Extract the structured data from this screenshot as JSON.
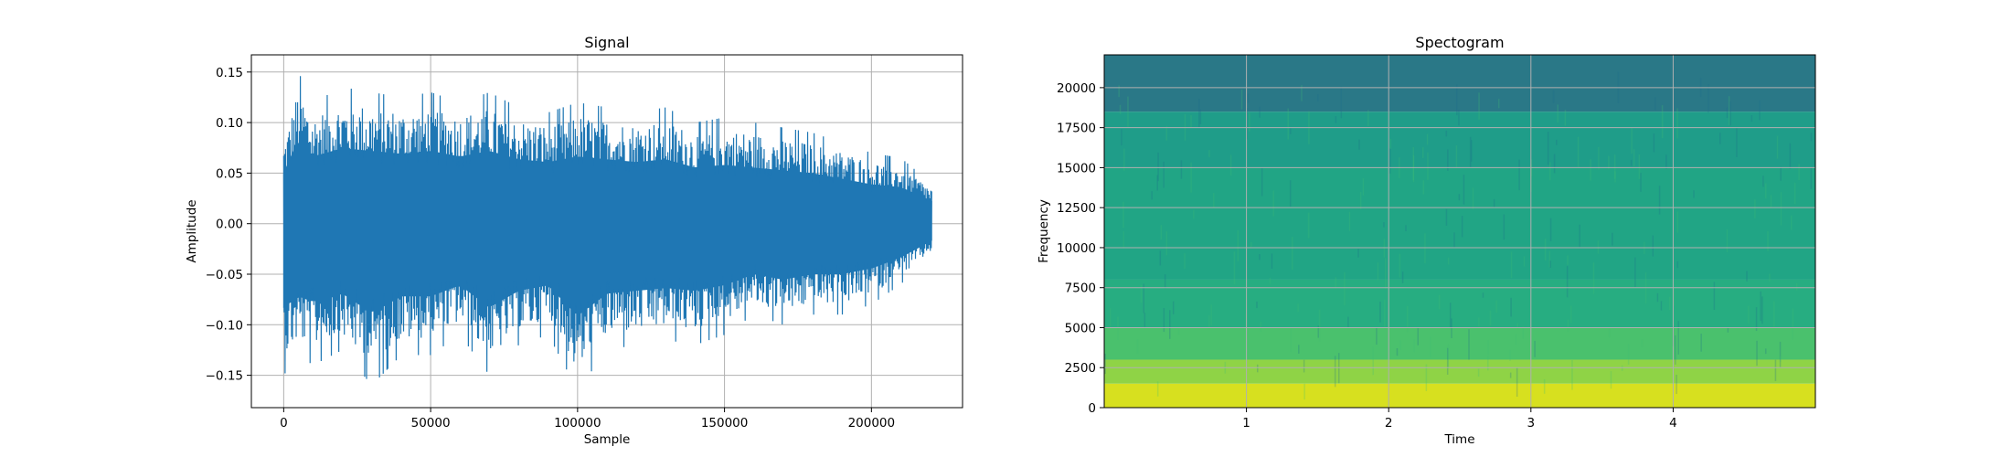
{
  "chart_data": [
    {
      "type": "line",
      "title": "Signal",
      "xlabel": "Sample",
      "ylabel": "Amplitude",
      "xlim": [
        -11000,
        231000
      ],
      "ylim": [
        -0.182,
        0.167
      ],
      "x_ticks": [
        0,
        50000,
        100000,
        150000,
        200000
      ],
      "x_tick_labels": [
        "0",
        "50000",
        "100000",
        "150000",
        "200000"
      ],
      "y_ticks": [
        -0.15,
        -0.1,
        -0.05,
        0.0,
        0.05,
        0.1,
        0.15
      ],
      "y_tick_labels": [
        "−0.15",
        "−0.10",
        "−0.05",
        "0.00",
        "0.05",
        "0.10",
        "0.15"
      ],
      "grid": true,
      "series": [
        {
          "color": "#1f77b4",
          "x_range": [
            0,
            220500
          ],
          "envelope": {
            "x": [
              0,
              5000,
              10000,
              20000,
              30000,
              40000,
              50000,
              60000,
              70000,
              80000,
              90000,
              100000,
              110000,
              120000,
              130000,
              140000,
              150000,
              160000,
              170000,
              180000,
              190000,
              200000,
              210000,
              220500
            ],
            "upper": [
              0.09,
              0.15,
              0.12,
              0.135,
              0.13,
              0.125,
              0.13,
              0.12,
              0.13,
              0.115,
              0.11,
              0.12,
              0.115,
              0.11,
              0.115,
              0.1,
              0.105,
              0.1,
              0.095,
              0.09,
              0.08,
              0.07,
              0.065,
              0.04
            ],
            "lower": [
              -0.15,
              -0.13,
              -0.14,
              -0.125,
              -0.16,
              -0.13,
              -0.13,
              -0.11,
              -0.15,
              -0.12,
              -0.11,
              -0.165,
              -0.125,
              -0.12,
              -0.115,
              -0.12,
              -0.11,
              -0.09,
              -0.1,
              -0.09,
              -0.09,
              -0.08,
              -0.06,
              -0.03
            ]
          }
        }
      ]
    },
    {
      "type": "heatmap",
      "title": "Spectogram",
      "xlabel": "Time",
      "ylabel": "Frequency",
      "xlim": [
        0,
        5.0
      ],
      "ylim": [
        0,
        22050
      ],
      "x_ticks": [
        1,
        2,
        3,
        4
      ],
      "x_tick_labels": [
        "1",
        "2",
        "3",
        "4"
      ],
      "y_ticks": [
        0,
        2500,
        5000,
        7500,
        10000,
        12500,
        15000,
        17500,
        20000
      ],
      "y_tick_labels": [
        "0",
        "2500",
        "5000",
        "7500",
        "10000",
        "12500",
        "15000",
        "17500",
        "20000"
      ],
      "grid": true,
      "colormap": "viridis",
      "frequency_bands": [
        {
          "from": 0,
          "to": 1500,
          "color": "#d7e01f"
        },
        {
          "from": 1500,
          "to": 3000,
          "color": "#8fd346"
        },
        {
          "from": 3000,
          "to": 5000,
          "color": "#4ac16d"
        },
        {
          "from": 5000,
          "to": 8000,
          "color": "#27ad81"
        },
        {
          "from": 8000,
          "to": 15000,
          "color": "#21a585"
        },
        {
          "from": 15000,
          "to": 18500,
          "color": "#1f9d89"
        },
        {
          "from": 18500,
          "to": 22050,
          "color": "#2a7887"
        }
      ]
    }
  ]
}
